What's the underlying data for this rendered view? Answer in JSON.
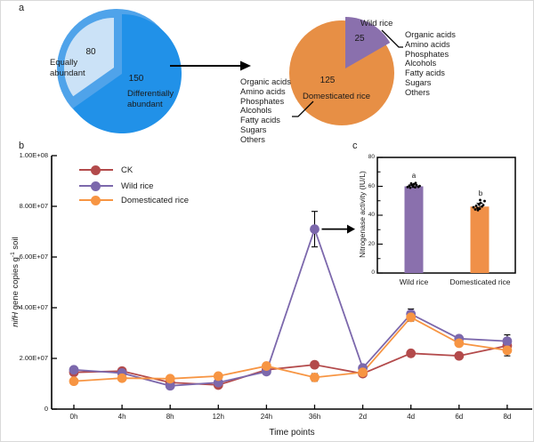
{
  "panel_labels": {
    "a": "a",
    "b": "b",
    "c": "c"
  },
  "chart_data": [
    {
      "type": "pie",
      "id": "abundance-pie",
      "backdrop_color": "#4fa3ea",
      "slices": [
        {
          "label": "Equally abundant",
          "value": 80,
          "color": "#cbe2f7"
        },
        {
          "label": "Differentially abundant",
          "value": 150,
          "color": "#2191e8"
        }
      ]
    },
    {
      "type": "pie",
      "id": "differential-pie",
      "slices": [
        {
          "label": "Wild rice",
          "value": 25,
          "color": "#8a70ad"
        },
        {
          "label": "Domesticated rice",
          "value": 125,
          "color": "#e78f45"
        }
      ],
      "metabolite_classes": [
        "Organic acids",
        "Amino acids",
        "Phosphates",
        "Alcohols",
        "Fatty acids",
        "Sugars",
        "Others"
      ]
    },
    {
      "type": "line",
      "id": "nifh-timecourse",
      "xlabel": "Time points",
      "ylabel_parts": {
        "italic": "nifH",
        "mid": " gene copies g",
        "sup": "-1",
        "end": " soil"
      },
      "categories": [
        "0h",
        "4h",
        "8h",
        "12h",
        "24h",
        "36h",
        "2d",
        "4d",
        "6d",
        "8d"
      ],
      "ytick_labels": [
        "0",
        "2.00E+07",
        "4.00E+07",
        "6.00E+07",
        "8.00E+07",
        "1.00E+08"
      ],
      "ylim": [
        0,
        100000000.0
      ],
      "legend_position": "upper-left",
      "series": [
        {
          "name": "CK",
          "color": "#b34a4b",
          "values": [
            14500000.0,
            15000000.0,
            10500000.0,
            9500000.0,
            15500000.0,
            17500000.0,
            14000000.0,
            22000000.0,
            21000000.0,
            25000000.0
          ],
          "errors": [
            500000.0,
            500000.0,
            500000.0,
            500000.0,
            500000.0,
            600000.0,
            500000.0,
            600000.0,
            500000.0,
            500000.0
          ]
        },
        {
          "name": "Wild rice",
          "color": "#7c68ac",
          "values": [
            15500000.0,
            14200000.0,
            9200000.0,
            10500000.0,
            14800000.0,
            71000000.0,
            16200000.0,
            37500000.0,
            27800000.0,
            26800000.0
          ],
          "errors": [
            700000.0,
            500000.0,
            500000.0,
            500000.0,
            500000.0,
            7000000.0,
            500000.0,
            2000000.0,
            1000000.0,
            2500000.0
          ]
        },
        {
          "name": "Domesticated rice",
          "color": "#f79543",
          "values": [
            11000000.0,
            12200000.0,
            12000000.0,
            13000000.0,
            17000000.0,
            12500000.0,
            14500000.0,
            36200000.0,
            26000000.0,
            23200000.0
          ],
          "errors": [
            500000.0,
            500000.0,
            500000.0,
            600000.0,
            500000.0,
            1500000.0,
            500000.0,
            1500000.0,
            1200000.0,
            2200000.0
          ]
        }
      ]
    },
    {
      "type": "bar",
      "id": "nitrogenase-activity",
      "ylabel": "Nitrogenase activity (IU/L)",
      "categories": [
        "Wild rice",
        "Domesticated rice"
      ],
      "values": [
        60,
        46
      ],
      "errors": [
        1.0,
        2.2
      ],
      "bar_colors": [
        "#8a70ad",
        "#f09048"
      ],
      "sig_letters": [
        "a",
        "b"
      ],
      "ytick_labels": [
        0,
        20,
        40,
        60,
        80
      ],
      "ylim": [
        0,
        80
      ],
      "points": {
        "wild": [
          [
            -7,
            59.5
          ],
          [
            -5,
            60.5
          ],
          [
            -4,
            59
          ],
          [
            -2.5,
            61
          ],
          [
            -1,
            59.8
          ],
          [
            0,
            61.5
          ],
          [
            1.5,
            59.3
          ],
          [
            3,
            60.8
          ],
          [
            5,
            59.6
          ],
          [
            6.5,
            60.2
          ],
          [
            -3,
            62
          ],
          [
            2,
            62.3
          ]
        ],
        "dom": [
          [
            -7,
            45.5
          ],
          [
            -5,
            44
          ],
          [
            -4,
            46.5
          ],
          [
            -2.5,
            45
          ],
          [
            -1,
            47.5
          ],
          [
            0,
            44.5
          ],
          [
            1,
            48.5
          ],
          [
            2.5,
            46
          ],
          [
            4,
            47
          ],
          [
            5.5,
            49.8
          ],
          [
            0.5,
            50.5
          ],
          [
            -2,
            43.5
          ]
        ]
      }
    }
  ]
}
